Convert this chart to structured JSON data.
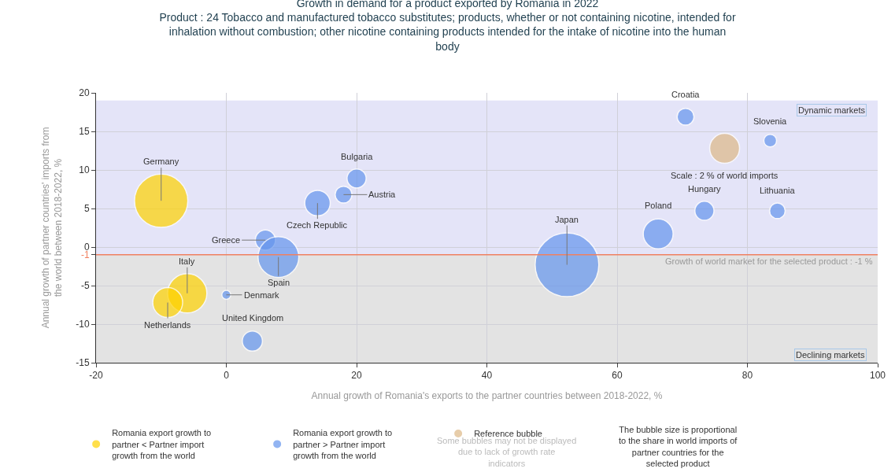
{
  "chart_data": {
    "type": "bubble",
    "title": "Growth in demand for a product exported by Romania in 2022",
    "subtitle": "Product : 24 Tobacco and manufactured tobacco substitutes; products, whether or not containing nicotine, intended for inhalation without combustion; other nicotine containing products intended for the intake of nicotine into the human body",
    "xlabel": "Annual growth of Romania's exports to the partner countries between 2018-2022, %",
    "ylabel": "Annual growth of partner countries' imports from the world between 2018-2022, %",
    "xlim": [
      -20,
      100
    ],
    "xticks": [
      -20,
      0,
      20,
      40,
      60,
      80,
      100
    ],
    "ylim": [
      -15,
      20
    ],
    "yticks": [
      -15,
      -10,
      -5,
      {
        "value": -1,
        "label": "-1"
      },
      0,
      5,
      10,
      15,
      20
    ],
    "grid": true,
    "legend": "bottom",
    "series": [
      {
        "name": "Romania export growth to partner < Partner import growth from the world",
        "color": "#ffd200",
        "x": [
          -10,
          -6,
          -9
        ],
        "values": [
          6,
          -6,
          -7.2
        ],
        "sizes": [
          0.7,
          0.38,
          0.22
        ]
      },
      {
        "name": "Romania export growth to partner > Partner import growth from the world",
        "color": "#6495ed",
        "x": [
          0,
          4,
          6,
          8,
          14,
          18,
          20,
          52.3,
          66.3,
          73.4,
          84.6,
          70.5,
          83.5
        ],
        "values": [
          -6.2,
          -12.2,
          0.9,
          -1.3,
          5.7,
          6.8,
          8.9,
          -2.3,
          1.7,
          4.7,
          4.7,
          16.9,
          13.8
        ],
        "sizes": [
          0.02,
          0.1,
          0.1,
          0.41,
          0.16,
          0.07,
          0.09,
          1,
          0.22,
          0.09,
          0.06,
          0.07,
          0.04
        ]
      },
      {
        "name": "Reference bubble",
        "color": "#deb887",
        "x": [
          76.5
        ],
        "values": [
          12.8
        ],
        "sizes": [
          0.22
        ]
      }
    ],
    "ref_lines": [
      {
        "axis": "y",
        "value": -1,
        "label": "Growth of world market for the selected product : -1 %",
        "color": "#f08060"
      }
    ],
    "bands": [
      {
        "axis": "y",
        "from": -1,
        "to": 19,
        "label": "Dynamic markets",
        "color": "#e4e4f8"
      },
      {
        "axis": "y",
        "from": -15,
        "to": -1,
        "label": "Declining markets",
        "color": "#e3e3e3"
      }
    ],
    "annotations": [
      {
        "text": "Croatia",
        "x": 70.5,
        "y": 16.9
      },
      {
        "text": "Slovenia",
        "x": 83.5,
        "y": 13.8
      },
      {
        "text": "Germany",
        "x": -10,
        "y": 6
      },
      {
        "text": "Bulgaria",
        "x": 20,
        "y": 8.9
      },
      {
        "text": "Austria",
        "x": 18,
        "y": 6.8
      },
      {
        "text": "Czech Republic",
        "x": 14,
        "y": 5.7
      },
      {
        "text": "Greece",
        "x": 6,
        "y": 0.9
      },
      {
        "text": "Spain",
        "x": 8,
        "y": -1.3
      },
      {
        "text": "Italy",
        "x": -6,
        "y": -6
      },
      {
        "text": "Netherlands",
        "x": -9,
        "y": -7.2
      },
      {
        "text": "Denmark",
        "x": 0,
        "y": -6.2
      },
      {
        "text": "United Kingdom",
        "x": 4,
        "y": -12.2
      },
      {
        "text": "Japan",
        "x": 52.3,
        "y": -2.3
      },
      {
        "text": "Poland",
        "x": 66.3,
        "y": 1.7
      },
      {
        "text": "Hungary",
        "x": 73.4,
        "y": 4.7
      },
      {
        "text": "Lithuania",
        "x": 84.6,
        "y": 4.7
      },
      {
        "text": "Scale : 2 % of world imports",
        "x": 76.5,
        "y": 12.8
      },
      "Some bubbles may not be displayed due to lack of growth rate indicators",
      "The bubble size is proportional to the share in world imports of partner countries for the selected product"
    ]
  }
}
